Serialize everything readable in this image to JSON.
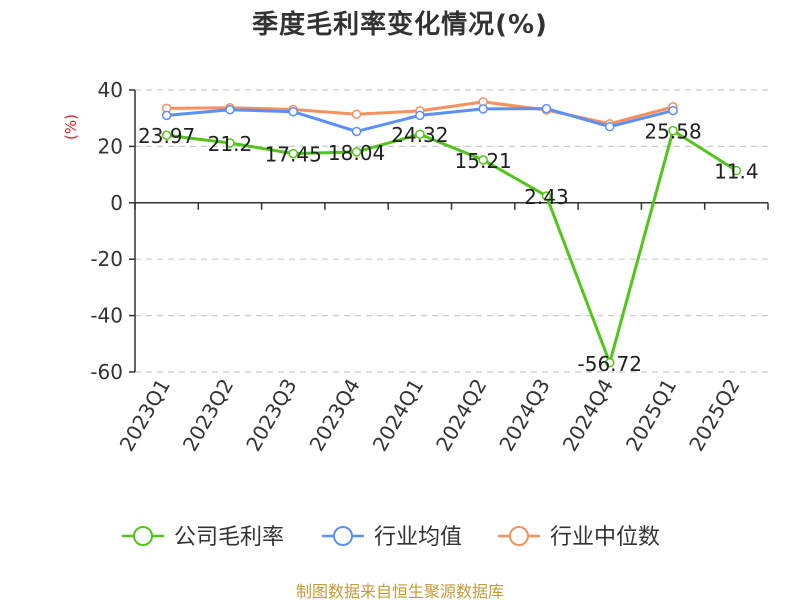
{
  "chart_data": {
    "type": "line",
    "title": "季度毛利率变化情况(%)",
    "ylabel": "(%)",
    "xlabel": "",
    "categories": [
      "2023Q1",
      "2023Q2",
      "2023Q3",
      "2023Q4",
      "2024Q1",
      "2024Q2",
      "2024Q3",
      "2024Q4",
      "2025Q1",
      "2025Q2"
    ],
    "ylim": [
      -60,
      40
    ],
    "yticks": [
      40,
      20,
      0,
      -20,
      -40,
      -60
    ],
    "grid": "horizontal dashed",
    "legend_position": "bottom",
    "series": [
      {
        "name": "公司毛利率",
        "color": "#52c41a",
        "values": [
          23.97,
          21.2,
          17.45,
          18.04,
          24.32,
          15.21,
          2.43,
          -56.72,
          25.58,
          11.4
        ],
        "labels": [
          "23.97",
          "21.2",
          "17.45",
          "18.04",
          "24.32",
          "15.21",
          "2.43",
          "-56.72",
          "25.58",
          "11.4"
        ]
      },
      {
        "name": "行业均值",
        "color": "#5b8ff9",
        "values": [
          31.0,
          33.0,
          32.3,
          25.3,
          31.0,
          33.3,
          33.4,
          27.0,
          32.7,
          null
        ]
      },
      {
        "name": "行业中位数",
        "color": "#f6905e",
        "values": [
          33.5,
          33.7,
          33.1,
          31.4,
          32.6,
          35.8,
          32.9,
          28.0,
          34.0,
          null
        ]
      }
    ]
  },
  "source_text": "制图数据来自恒生聚源数据库",
  "colors": {
    "axis": "#333333",
    "grid": "#cccccc",
    "unit_label": "#e02020",
    "source_text": "#c49a3a"
  }
}
